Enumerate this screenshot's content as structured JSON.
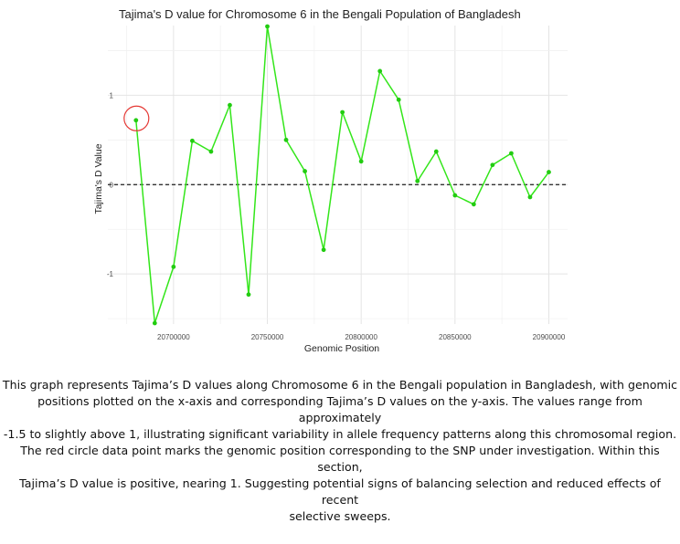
{
  "chart_data": {
    "type": "line",
    "title": "Tajima's D value for Chromosome 6 in the Bengali Population of Bangladesh",
    "xlabel": "Genomic Position",
    "ylabel": "Tajima's D Value",
    "xlim": [
      20665000,
      20910000
    ],
    "ylim": [
      -1.56,
      1.78
    ],
    "x_ticks": [
      20700000,
      20750000,
      20800000,
      20850000,
      20900000
    ],
    "y_ticks": [
      -1,
      0,
      1
    ],
    "grid": true,
    "reference_line": {
      "y": 0,
      "style": "dashed",
      "color": "#333333"
    },
    "line_color": "#33e61a",
    "point_color": "#22cc11",
    "highlight_color": "#e53935",
    "highlight_index": 0,
    "series": [
      {
        "x": [
          20680000,
          20690000,
          20700000,
          20710000,
          20720000,
          20730000,
          20740000,
          20750000,
          20760000,
          20770000,
          20780000,
          20790000,
          20800000,
          20810000,
          20820000,
          20830000,
          20840000,
          20850000,
          20860000,
          20870000,
          20880000,
          20890000,
          20900000
        ],
        "y": [
          0.72,
          -1.55,
          -0.92,
          0.49,
          0.37,
          0.89,
          -1.23,
          1.77,
          0.5,
          0.15,
          -0.73,
          0.81,
          0.26,
          1.27,
          0.95,
          0.04,
          0.37,
          -0.12,
          -0.22,
          0.22,
          0.35,
          -0.14,
          0.14
        ]
      }
    ]
  },
  "caption": {
    "paragraph1": [
      "This graph represents Tajima’s D values along Chromosome 6 in the Bengali population in Bangladesh, with genomic",
      "positions plotted on the x-axis and corresponding Tajima’s D values on the y-axis. The values range from approximately",
      "-1.5 to slightly above 1, illustrating significant variability in allele frequency patterns along this chromosomal region."
    ],
    "paragraph2": [
      "The red circle data point marks the genomic position corresponding to the SNP under investigation. Within this section,",
      "Tajima’s D value is positive, nearing 1. Suggesting potential signs of balancing selection and reduced effects of recent",
      "selective sweeps."
    ]
  }
}
